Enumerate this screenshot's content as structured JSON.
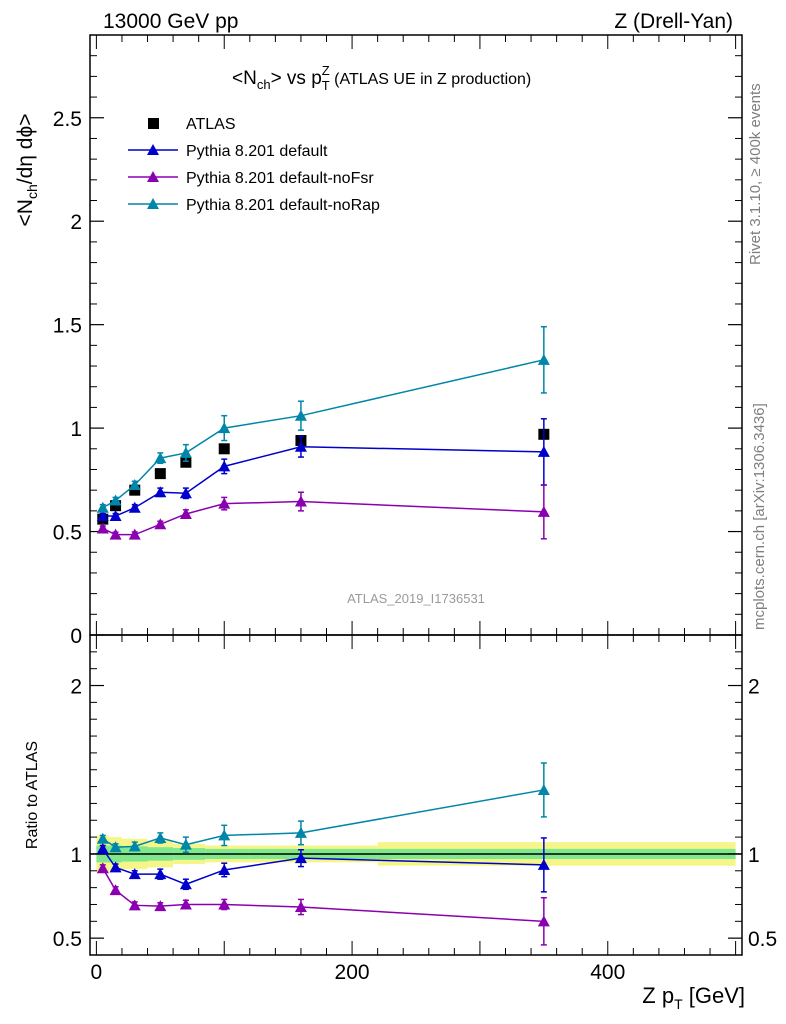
{
  "header": {
    "left": "13000 GeV pp",
    "right": "Z (Drell-Yan)"
  },
  "side_labels": {
    "rivet": "Rivet 3.1.10, ≥ 400k events",
    "mcplots": "mcplots.cern.ch [arXiv:1306.3436]"
  },
  "chart_data": [
    {
      "type": "line",
      "title_main": "<N",
      "title_sub": "ch",
      "title_mid": "> vs p",
      "title_sup": "Z",
      "title_sub2": "T",
      "title_tail": " (ATLAS UE in Z production)",
      "watermark": "ATLAS_2019_I1736531",
      "ylabel_parts": [
        "<N",
        "ch",
        "/dη dϕ>"
      ],
      "xlim": [
        -5,
        505
      ],
      "ylim": [
        0,
        2.9
      ],
      "ytick_values": [
        0,
        0.5,
        1,
        1.5,
        2,
        2.5
      ],
      "ytick_labels": [
        "0",
        "0.5",
        "1",
        "1.5",
        "2",
        "2.5"
      ],
      "legend": [
        "ATLAS",
        "Pythia 8.201 default",
        "Pythia 8.201 default-noFsr",
        "Pythia 8.201 default-noRap"
      ],
      "series": [
        {
          "name": "ATLAS",
          "color": "#000000",
          "marker": "square",
          "x": [
            5,
            15,
            30,
            50,
            70,
            100,
            160,
            350
          ],
          "y": [
            0.56,
            0.625,
            0.7,
            0.78,
            0.835,
            0.9,
            0.94,
            0.97
          ],
          "yerr": [
            0.01,
            0.01,
            0.01,
            0.01,
            0.01,
            0.01,
            0.01,
            0.02
          ]
        },
        {
          "name": "Pythia 8.201 default",
          "color": "#0000cc",
          "marker": "triangle",
          "x": [
            5,
            15,
            30,
            50,
            70,
            100,
            160,
            350
          ],
          "y": [
            0.575,
            0.575,
            0.615,
            0.69,
            0.685,
            0.815,
            0.91,
            0.885
          ],
          "yerr": [
            0.012,
            0.012,
            0.015,
            0.02,
            0.025,
            0.035,
            0.05,
            0.16
          ]
        },
        {
          "name": "Pythia 8.201 default-noFsr",
          "color": "#8a00b0",
          "marker": "triangle",
          "x": [
            5,
            15,
            30,
            50,
            70,
            100,
            160,
            350
          ],
          "y": [
            0.515,
            0.485,
            0.485,
            0.535,
            0.585,
            0.635,
            0.645,
            0.595
          ],
          "yerr": [
            0.012,
            0.012,
            0.013,
            0.015,
            0.02,
            0.03,
            0.045,
            0.13
          ]
        },
        {
          "name": "Pythia 8.201 default-noRap",
          "color": "#0086a8",
          "marker": "triangle",
          "x": [
            5,
            15,
            30,
            50,
            70,
            100,
            160,
            350
          ],
          "y": [
            0.615,
            0.65,
            0.725,
            0.855,
            0.88,
            1.0,
            1.06,
            1.33
          ],
          "yerr": [
            0.015,
            0.015,
            0.018,
            0.025,
            0.04,
            0.06,
            0.07,
            0.16
          ]
        }
      ]
    },
    {
      "type": "line",
      "ylabel": "Ratio to ATLAS",
      "xlabel_main": "Z p",
      "xlabel_sub": "T",
      "xlabel_tail": " [GeV]",
      "xlim": [
        -5,
        505
      ],
      "ylim": [
        0.4,
        2.3
      ],
      "ytick_values": [
        0.5,
        1,
        2
      ],
      "ytick_labels": [
        "0.5",
        "1",
        "2"
      ],
      "xtick_values": [
        0,
        200,
        400
      ],
      "xtick_labels": [
        "0",
        "200",
        "400"
      ],
      "reference_line": 1,
      "bands": [
        {
          "name": "total uncertainty",
          "color": "#f5f58a",
          "x": [
            0,
            10,
            20,
            40,
            60,
            85,
            120,
            220,
            500
          ],
          "half_width": [
            0.11,
            0.1,
            0.09,
            0.08,
            0.06,
            0.05,
            0.05,
            0.07
          ]
        },
        {
          "name": "statistical uncertainty",
          "color": "#80e88c",
          "x": [
            0,
            10,
            20,
            40,
            60,
            85,
            120,
            220,
            500
          ],
          "half_width": [
            0.05,
            0.05,
            0.045,
            0.04,
            0.035,
            0.03,
            0.03,
            0.03
          ]
        }
      ],
      "series": [
        {
          "name": "Pythia 8.201 default",
          "color": "#0000cc",
          "x": [
            5,
            15,
            30,
            50,
            70,
            100,
            160,
            350
          ],
          "y": [
            1.03,
            0.92,
            0.88,
            0.88,
            0.82,
            0.905,
            0.975,
            0.935
          ],
          "yerr": [
            0.02,
            0.02,
            0.02,
            0.03,
            0.03,
            0.04,
            0.05,
            0.16
          ]
        },
        {
          "name": "Pythia 8.201 default-noFsr",
          "color": "#8a00b0",
          "x": [
            5,
            15,
            30,
            50,
            70,
            100,
            160,
            350
          ],
          "y": [
            0.915,
            0.785,
            0.695,
            0.69,
            0.7,
            0.7,
            0.685,
            0.6
          ],
          "yerr": [
            0.02,
            0.02,
            0.02,
            0.02,
            0.025,
            0.03,
            0.045,
            0.14
          ]
        },
        {
          "name": "Pythia 8.201 default-noRap",
          "color": "#0086a8",
          "x": [
            5,
            15,
            30,
            50,
            70,
            100,
            160,
            350
          ],
          "y": [
            1.09,
            1.04,
            1.045,
            1.095,
            1.055,
            1.11,
            1.125,
            1.38
          ],
          "yerr": [
            0.02,
            0.02,
            0.025,
            0.03,
            0.045,
            0.06,
            0.07,
            0.16
          ]
        }
      ]
    }
  ]
}
